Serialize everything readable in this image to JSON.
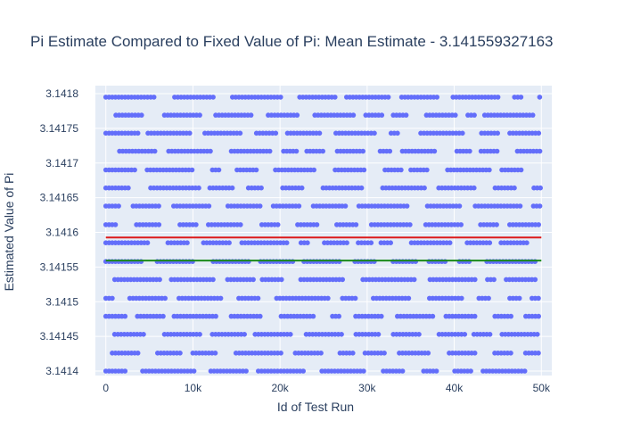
{
  "chart_data": {
    "type": "scatter",
    "title": "Pi Estimate Compared to Fixed Value of Pi: Mean Estimate - 3.141559327163",
    "xlabel": "Id of Test Run",
    "ylabel": "Estimated Value of Pi",
    "xlim": [
      -1200,
      51200
    ],
    "ylim": [
      3.1414,
      3.1418
    ],
    "x_ticks": [
      0,
      10000,
      20000,
      30000,
      40000,
      50000
    ],
    "x_tick_labels": [
      "0",
      "10k",
      "20k",
      "30k",
      "40k",
      "50k"
    ],
    "y_ticks": [
      3.1414,
      3.14145,
      3.1415,
      3.14155,
      3.1416,
      3.14165,
      3.1417,
      3.14175,
      3.1418
    ],
    "y_tick_labels": [
      "3.1414",
      "3.14145",
      "3.1415",
      "3.14155",
      "3.1416",
      "3.14165",
      "3.1417",
      "3.14175",
      "3.1418"
    ],
    "grid": true,
    "scatter": {
      "color": "#636efa",
      "x_range": [
        0,
        50000
      ],
      "y_levels": [
        3.1414,
        3.141426,
        3.141453,
        3.141479,
        3.141505,
        3.141532,
        3.141558,
        3.141585,
        3.141611,
        3.141638,
        3.141664,
        3.14169,
        3.141717,
        3.141743,
        3.141769,
        3.141795
      ]
    },
    "lines": [
      {
        "value": 3.141592653589793,
        "color": "#dc1a1a",
        "x_range": [
          0,
          50000
        ]
      },
      {
        "value": 3.141559327163,
        "color": "#1a8a1a",
        "x_range": [
          0,
          50000
        ]
      }
    ],
    "plot_bg": "#e5ecf6",
    "grid_color": "#ffffff",
    "text_color": "#2a3f5f"
  }
}
